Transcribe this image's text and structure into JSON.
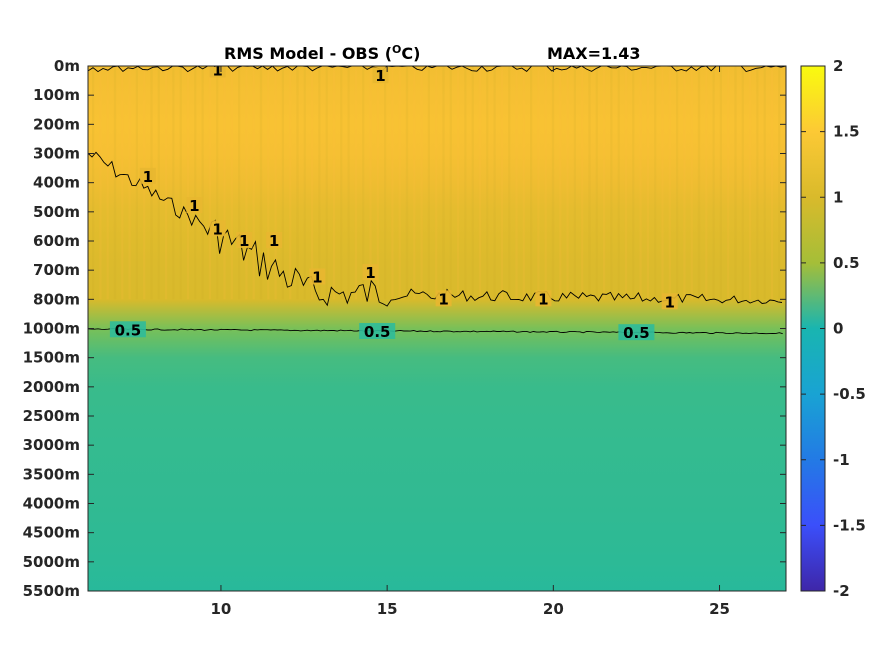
{
  "title_left": "RMS Model - OBS (",
  "title_super": "O",
  "title_right": "C)",
  "title_max": "MAX=1.43",
  "chart_data": {
    "type": "heatmap",
    "x_ticks": [
      10,
      15,
      20,
      25
    ],
    "x_range": [
      6,
      27
    ],
    "y_tick_labels": [
      "0m",
      "100m",
      "200m",
      "300m",
      "400m",
      "500m",
      "600m",
      "700m",
      "800m",
      "1000m",
      "1500m",
      "2000m",
      "2500m",
      "3000m",
      "3500m",
      "4000m",
      "4500m",
      "5000m",
      "5500m"
    ],
    "y_depths": [
      0,
      100,
      200,
      300,
      400,
      500,
      600,
      700,
      800,
      1000,
      1500,
      2000,
      2500,
      3000,
      3500,
      4000,
      4500,
      5000,
      5500
    ],
    "colorbar": {
      "range": [
        -2,
        2
      ],
      "ticks": [
        2,
        1.5,
        1,
        0.5,
        0,
        -0.5,
        -1,
        -1.5,
        -2
      ],
      "tick_labels": [
        "2",
        "1.5",
        "1",
        "0.5",
        "0",
        "-0.5",
        "-1",
        "-1.5",
        "-2"
      ]
    },
    "band_values": [
      {
        "depth": 0,
        "value": 1.22
      },
      {
        "depth": 100,
        "value": 1.3
      },
      {
        "depth": 200,
        "value": 1.35
      },
      {
        "depth": 300,
        "value": 1.3
      },
      {
        "depth": 400,
        "value": 1.2
      },
      {
        "depth": 500,
        "value": 1.1
      },
      {
        "depth": 600,
        "value": 1.05
      },
      {
        "depth": 700,
        "value": 1.02
      },
      {
        "depth": 800,
        "value": 1.0
      },
      {
        "depth": 1000,
        "value": 0.55
      },
      {
        "depth": 1500,
        "value": 0.35
      },
      {
        "depth": 2000,
        "value": 0.3
      },
      {
        "depth": 3000,
        "value": 0.28
      },
      {
        "depth": 4000,
        "value": 0.27
      },
      {
        "depth": 5000,
        "value": 0.25
      },
      {
        "depth": 5500,
        "value": 0.2
      }
    ],
    "contour_labels": [
      {
        "text": "0.5",
        "x": 7.2,
        "depth": 1030
      },
      {
        "text": "0.5",
        "x": 14.7,
        "depth": 1060
      },
      {
        "text": "0.5",
        "x": 22.5,
        "depth": 1080
      },
      {
        "text": "1",
        "x": 7.8,
        "depth": 380
      },
      {
        "text": "1",
        "x": 9.2,
        "depth": 480
      },
      {
        "text": "1",
        "x": 9.9,
        "depth": 560
      },
      {
        "text": "1",
        "x": 10.7,
        "depth": 600
      },
      {
        "text": "1",
        "x": 11.6,
        "depth": 600
      },
      {
        "text": "1",
        "x": 12.9,
        "depth": 725
      },
      {
        "text": "1",
        "x": 14.5,
        "depth": 710
      },
      {
        "text": "1",
        "x": 16.7,
        "depth": 800
      },
      {
        "text": "1",
        "x": 19.7,
        "depth": 800
      },
      {
        "text": "1",
        "x": 23.5,
        "depth": 820
      },
      {
        "text": "1",
        "x": 9.9,
        "depth": 15
      },
      {
        "text": "1",
        "x": 14.8,
        "depth": 35
      }
    ]
  }
}
